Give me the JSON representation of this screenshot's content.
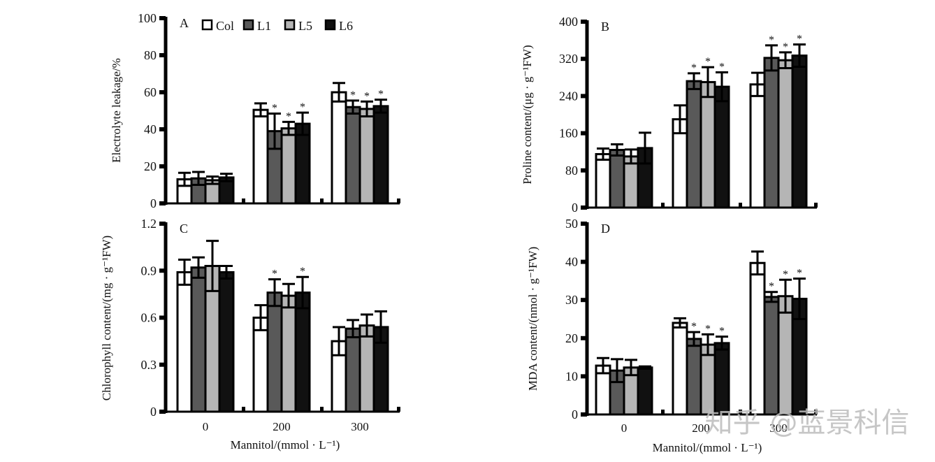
{
  "figure": {
    "groups": [
      "0",
      "200",
      "300"
    ],
    "shared_xlabel": "Mannitol/(mmol · L⁻¹)",
    "watermark": "知乎 @蓝景科信"
  },
  "legend": {
    "placement": "top (inside panel A)",
    "entries": [
      {
        "name": "Col",
        "color": "#ffffff"
      },
      {
        "name": "L1",
        "color": "#595959"
      },
      {
        "name": "L5",
        "color": "#b5b5b5"
      },
      {
        "name": "L6",
        "color": "#111111"
      }
    ]
  },
  "chart_data": [
    {
      "panel": "A",
      "type": "bar",
      "title": "A",
      "xlabel": "",
      "ylabel": "Electrolyte leakage/%",
      "ylim": [
        0,
        100
      ],
      "yticks": [
        "0",
        "20",
        "40",
        "60",
        "80",
        "100"
      ],
      "categories": [
        "0",
        "200",
        "300"
      ],
      "series": [
        {
          "name": "Col",
          "values": [
            13,
            50.5,
            60
          ],
          "errors": [
            3.5,
            3.5,
            5
          ],
          "significant": [
            false,
            false,
            false
          ]
        },
        {
          "name": "L1",
          "values": [
            13.5,
            39,
            52
          ],
          "errors": [
            3.5,
            9.5,
            3.5
          ],
          "significant": [
            false,
            true,
            true
          ]
        },
        {
          "name": "L5",
          "values": [
            12.5,
            40.5,
            51
          ],
          "errors": [
            2,
            3.5,
            4
          ],
          "significant": [
            false,
            true,
            true
          ]
        },
        {
          "name": "L6",
          "values": [
            14,
            43,
            52.5
          ],
          "errors": [
            2,
            6,
            3.5
          ],
          "significant": [
            false,
            true,
            true
          ]
        }
      ]
    },
    {
      "panel": "B",
      "type": "bar",
      "title": "B",
      "xlabel": "",
      "ylabel": "Proline content/(μg · g⁻¹FW)",
      "ylim": [
        0,
        400
      ],
      "yticks": [
        "0",
        "80",
        "160",
        "240",
        "320",
        "400"
      ],
      "categories": [
        "0",
        "200",
        "300"
      ],
      "series": [
        {
          "name": "Col",
          "values": [
            115,
            190,
            265
          ],
          "errors": [
            12,
            30,
            25
          ],
          "significant": [
            false,
            false,
            false
          ]
        },
        {
          "name": "L1",
          "values": [
            124,
            272,
            322
          ],
          "errors": [
            12,
            17,
            27
          ],
          "significant": [
            false,
            true,
            true
          ]
        },
        {
          "name": "L5",
          "values": [
            110,
            270,
            317
          ],
          "errors": [
            15,
            32,
            17
          ],
          "significant": [
            false,
            true,
            true
          ]
        },
        {
          "name": "L6",
          "values": [
            128,
            260,
            327
          ],
          "errors": [
            33,
            31,
            24
          ],
          "significant": [
            false,
            true,
            true
          ]
        }
      ]
    },
    {
      "panel": "C",
      "type": "bar",
      "title": "C",
      "xlabel": "Mannitol/(mmol · L⁻¹)",
      "ylabel": "Chlorophyll content/(mg · g⁻¹FW)",
      "ylim": [
        0,
        1.2
      ],
      "yticks": [
        "0",
        "0.3",
        "0.6",
        "0.9",
        "1.2"
      ],
      "categories": [
        "0",
        "200",
        "300"
      ],
      "series": [
        {
          "name": "Col",
          "values": [
            0.89,
            0.6,
            0.45
          ],
          "errors": [
            0.08,
            0.08,
            0.09
          ],
          "significant": [
            false,
            false,
            false
          ]
        },
        {
          "name": "L1",
          "values": [
            0.92,
            0.76,
            0.53
          ],
          "errors": [
            0.065,
            0.085,
            0.055
          ],
          "significant": [
            false,
            true,
            false
          ]
        },
        {
          "name": "L5",
          "values": [
            0.93,
            0.74,
            0.55
          ],
          "errors": [
            0.16,
            0.075,
            0.07
          ],
          "significant": [
            false,
            false,
            false
          ]
        },
        {
          "name": "L6",
          "values": [
            0.89,
            0.76,
            0.54
          ],
          "errors": [
            0.04,
            0.1,
            0.1
          ],
          "significant": [
            false,
            true,
            false
          ]
        }
      ]
    },
    {
      "panel": "D",
      "type": "bar",
      "title": "D",
      "xlabel": "Mannitol/(mmol · L⁻¹)",
      "ylabel": "MDA content/(nmol · g⁻¹FW)",
      "ylim": [
        0,
        50
      ],
      "yticks": [
        "0",
        "10",
        "20",
        "30",
        "40",
        "50"
      ],
      "categories": [
        "0",
        "200",
        "300"
      ],
      "series": [
        {
          "name": "Col",
          "values": [
            12.8,
            24,
            39.7
          ],
          "errors": [
            2,
            1.2,
            3
          ],
          "significant": [
            false,
            false,
            false
          ]
        },
        {
          "name": "L1",
          "values": [
            11.5,
            19.8,
            30.8
          ],
          "errors": [
            3,
            1.8,
            1.3
          ],
          "significant": [
            false,
            true,
            true
          ]
        },
        {
          "name": "L5",
          "values": [
            12.3,
            18.3,
            31
          ],
          "errors": [
            2,
            2.7,
            4.3
          ],
          "significant": [
            false,
            true,
            true
          ]
        },
        {
          "name": "L6",
          "values": [
            12.3,
            18.7,
            30.3
          ],
          "errors": [
            0.3,
            1.7,
            5.3
          ],
          "significant": [
            false,
            true,
            true
          ]
        }
      ]
    }
  ]
}
